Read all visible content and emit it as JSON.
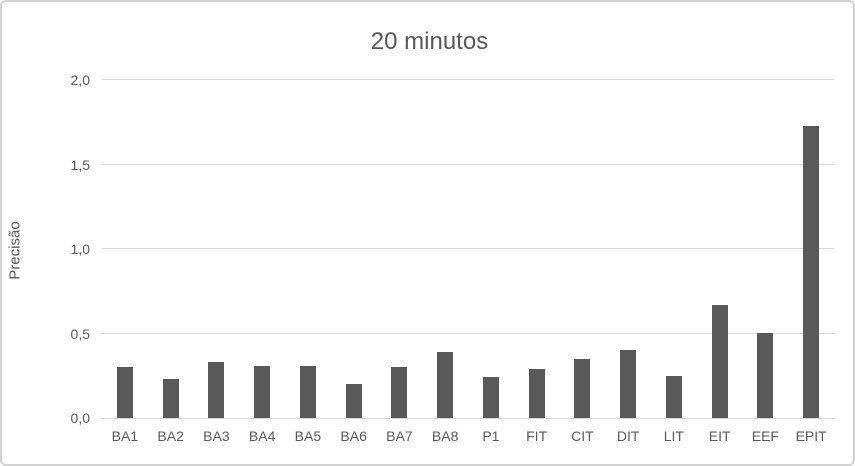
{
  "chart_data": {
    "type": "bar",
    "title": "20 minutos",
    "ylabel": "Precisão",
    "xlabel": "",
    "categories": [
      "BA1",
      "BA2",
      "BA3",
      "BA4",
      "BA5",
      "BA6",
      "BA7",
      "BA8",
      "P1",
      "FIT",
      "CIT",
      "DIT",
      "LIT",
      "EIT",
      "EEF",
      "EPIT"
    ],
    "values": [
      0.3,
      0.23,
      0.33,
      0.31,
      0.31,
      0.2,
      0.3,
      0.39,
      0.24,
      0.29,
      0.35,
      0.4,
      0.25,
      0.67,
      0.5,
      1.73
    ],
    "ylim": [
      0,
      2.0
    ],
    "ytick_step": 0.5,
    "ytick_labels": [
      "0,0",
      "0,5",
      "1,0",
      "1,5",
      "2,0"
    ],
    "grid": true,
    "legend_position": "none",
    "colors": {
      "bar": "#595959",
      "text": "#595959",
      "gridline": "#d9d9d9",
      "frame_border": "#d2d2d2",
      "background": "#ffffff"
    }
  }
}
